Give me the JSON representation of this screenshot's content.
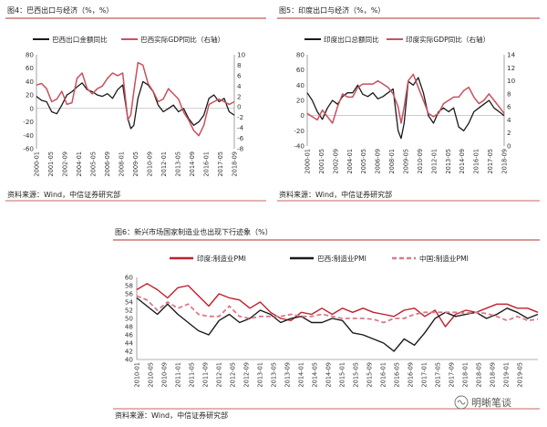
{
  "chart_data": [
    {
      "type": "line",
      "title": "图4：巴西出口与经济（%，%）",
      "source": "资料来源：Wind，中信证券研究部",
      "left_axis": {
        "min": -60,
        "max": 80,
        "step": 20,
        "ticks": [
          "80",
          "60",
          "40",
          "20",
          "0",
          "-20",
          "-40",
          "-60"
        ]
      },
      "right_axis": {
        "min": -8,
        "max": 10,
        "step": 2,
        "ticks": [
          "10",
          "8",
          "6",
          "4",
          "2",
          "0",
          "-2",
          "-4",
          "-6",
          "-8"
        ]
      },
      "x_range": [
        2000.0,
        2019.5
      ],
      "categories": [
        "2000-01",
        "2001-05",
        "2002-09",
        "2004-01",
        "2005-05",
        "2006-09",
        "2008-01",
        "2009-05",
        "2010-09",
        "2012-01",
        "2013-05",
        "2014-09",
        "2016-01",
        "2017-05",
        "2018-09"
      ],
      "series": [
        {
          "name": "巴西出口金额同比",
          "axis": "left",
          "color": "#1a1a1a",
          "x": [
            2000.0,
            2000.5,
            2001.0,
            2001.5,
            2002.0,
            2002.5,
            2003.0,
            2003.5,
            2004.0,
            2004.5,
            2005.0,
            2005.5,
            2006.0,
            2006.5,
            2007.0,
            2007.5,
            2008.0,
            2008.5,
            2009.0,
            2009.3,
            2009.6,
            2010.0,
            2010.5,
            2011.0,
            2011.5,
            2012.0,
            2012.5,
            2013.0,
            2013.5,
            2014.0,
            2014.5,
            2015.0,
            2015.5,
            2016.0,
            2016.5,
            2017.0,
            2017.5,
            2018.0,
            2018.5,
            2019.0,
            2019.5
          ],
          "values": [
            18,
            12,
            10,
            -5,
            -8,
            5,
            20,
            25,
            32,
            38,
            28,
            25,
            20,
            18,
            22,
            15,
            28,
            35,
            -15,
            -30,
            -25,
            15,
            40,
            35,
            25,
            5,
            -5,
            0,
            5,
            -5,
            0,
            -15,
            -25,
            -20,
            -10,
            15,
            20,
            10,
            15,
            -5,
            -10
          ]
        },
        {
          "name": "巴西实际GDP同比（右轴）",
          "axis": "right",
          "color": "#c9505e",
          "x": [
            2000.0,
            2000.5,
            2001.0,
            2001.5,
            2002.0,
            2002.5,
            2003.0,
            2003.5,
            2004.0,
            2004.5,
            2005.0,
            2005.5,
            2006.0,
            2006.5,
            2007.0,
            2007.5,
            2008.0,
            2008.5,
            2009.0,
            2009.3,
            2009.6,
            2010.0,
            2010.5,
            2011.0,
            2011.5,
            2012.0,
            2012.5,
            2013.0,
            2013.5,
            2014.0,
            2014.5,
            2015.0,
            2015.5,
            2016.0,
            2016.5,
            2017.0,
            2017.5,
            2018.0,
            2018.5,
            2019.0,
            2019.5
          ],
          "values": [
            4.2,
            4.5,
            3.5,
            1.0,
            1.5,
            3.0,
            0.5,
            0.8,
            5.5,
            6.5,
            3.5,
            2.5,
            3.5,
            4.0,
            5.5,
            6.5,
            6.0,
            6.5,
            -2.5,
            -1.5,
            3.0,
            8.5,
            8.0,
            4.5,
            3.0,
            1.0,
            1.5,
            3.5,
            2.5,
            1.5,
            -1.0,
            -2.5,
            -4.5,
            -5.5,
            -3.5,
            0.5,
            1.0,
            1.5,
            1.0,
            0.5,
            1.0
          ]
        }
      ]
    },
    {
      "type": "line",
      "title": "图5：印度出口与经济（%，%）",
      "source": "资料来源：Wind，中信证券研究部",
      "left_axis": {
        "min": -40,
        "max": 80,
        "step": 20,
        "ticks": [
          "80",
          "60",
          "40",
          "20",
          "0",
          "-20",
          "-40"
        ]
      },
      "right_axis": {
        "min": 0,
        "max": 14,
        "step": 2,
        "ticks": [
          "14",
          "12",
          "10",
          "8",
          "6",
          "4",
          "2",
          "0"
        ]
      },
      "x_range": [
        2000.0,
        2019.5
      ],
      "categories": [
        "2000-01",
        "2001-05",
        "2002-09",
        "2004-01",
        "2005-05",
        "2006-09",
        "2008-01",
        "2009-05",
        "2010-09",
        "2012-01",
        "2013-05",
        "2014-09",
        "2016-01",
        "2017-05",
        "2018-09"
      ],
      "series": [
        {
          "name": "印度出口总额同比",
          "axis": "left",
          "color": "#1a1a1a",
          "x": [
            2000.0,
            2000.5,
            2001.0,
            2001.5,
            2002.0,
            2002.5,
            2003.0,
            2003.5,
            2004.0,
            2004.5,
            2005.0,
            2005.5,
            2006.0,
            2006.5,
            2007.0,
            2007.5,
            2008.0,
            2008.5,
            2009.0,
            2009.3,
            2009.6,
            2010.0,
            2010.5,
            2011.0,
            2011.5,
            2012.0,
            2012.5,
            2013.0,
            2013.5,
            2014.0,
            2014.5,
            2015.0,
            2015.5,
            2016.0,
            2016.5,
            2017.0,
            2017.5,
            2018.0,
            2018.5,
            2019.0,
            2019.5
          ],
          "values": [
            30,
            20,
            5,
            -5,
            10,
            20,
            15,
            25,
            30,
            30,
            40,
            28,
            25,
            30,
            22,
            25,
            30,
            35,
            -20,
            -30,
            -10,
            45,
            40,
            50,
            30,
            0,
            -10,
            5,
            10,
            5,
            10,
            -15,
            -20,
            -10,
            5,
            10,
            15,
            20,
            10,
            5,
            0
          ]
        },
        {
          "name": "印度实际GDP同比（右轴）",
          "axis": "right",
          "color": "#c9505e",
          "x": [
            2000.0,
            2000.5,
            2001.0,
            2001.5,
            2002.0,
            2002.5,
            2003.0,
            2003.5,
            2004.0,
            2004.5,
            2005.0,
            2005.5,
            2006.0,
            2006.5,
            2007.0,
            2007.5,
            2008.0,
            2008.5,
            2009.0,
            2009.3,
            2009.6,
            2010.0,
            2010.5,
            2011.0,
            2011.5,
            2012.0,
            2012.5,
            2013.0,
            2013.5,
            2014.0,
            2014.5,
            2015.0,
            2015.5,
            2016.0,
            2016.5,
            2017.0,
            2017.5,
            2018.0,
            2018.5,
            2019.0,
            2019.5
          ],
          "values": [
            5.0,
            4.5,
            4.0,
            5.5,
            4.5,
            3.5,
            6.0,
            8.0,
            7.5,
            7.5,
            9.0,
            9.5,
            9.5,
            9.5,
            10.0,
            9.5,
            9.0,
            8.0,
            6.0,
            3.5,
            6.0,
            10.0,
            11.0,
            9.0,
            7.0,
            5.0,
            4.5,
            5.0,
            6.5,
            7.0,
            7.5,
            7.5,
            8.5,
            9.0,
            7.5,
            6.5,
            7.0,
            8.0,
            7.0,
            6.0,
            5.0
          ]
        }
      ]
    },
    {
      "type": "line",
      "title": "图6：新兴市场国家制造业也出现下行迹象（%）",
      "source": "资料来源：Wind，中信证券研究部",
      "watermark": "明晰笔谈",
      "y_axis": {
        "min": 40,
        "max": 60,
        "step": 2,
        "ticks": [
          "60",
          "58",
          "56",
          "54",
          "52",
          "50",
          "48",
          "46",
          "44",
          "42",
          "40"
        ]
      },
      "x_range": [
        2010.0,
        2019.75
      ],
      "categories": [
        "2010-01",
        "2010-05",
        "2010-09",
        "2011-01",
        "2011-05",
        "2011-09",
        "2012-01",
        "2012-05",
        "2012-09",
        "2013-01",
        "2013-05",
        "2013-09",
        "2014-01",
        "2014-05",
        "2014-09",
        "2015-01",
        "2015-05",
        "2015-09",
        "2016-01",
        "2016-05",
        "2016-09",
        "2017-01",
        "2017-05",
        "2017-09",
        "2018-01",
        "2018-05",
        "2018-09",
        "2019-01",
        "2019-05"
      ],
      "series": [
        {
          "name": "印度:制造业PMI",
          "color": "#c0202c",
          "dash": false,
          "x": [
            2010.0,
            2010.25,
            2010.5,
            2010.75,
            2011.0,
            2011.25,
            2011.5,
            2011.75,
            2012.0,
            2012.25,
            2012.5,
            2012.75,
            2013.0,
            2013.25,
            2013.5,
            2013.75,
            2014.0,
            2014.25,
            2014.5,
            2014.75,
            2015.0,
            2015.25,
            2015.5,
            2015.75,
            2016.0,
            2016.25,
            2016.5,
            2016.75,
            2017.0,
            2017.25,
            2017.5,
            2017.75,
            2018.0,
            2018.25,
            2018.5,
            2018.75,
            2019.0,
            2019.25,
            2019.5,
            2019.75
          ],
          "values": [
            57,
            58.5,
            57,
            55,
            57.5,
            58,
            55.5,
            53,
            56,
            55,
            54.5,
            52.5,
            54,
            51.5,
            50,
            49.5,
            51.5,
            51,
            52.5,
            51,
            52.5,
            51.5,
            52.5,
            51.5,
            51,
            50.5,
            52,
            52.5,
            50.5,
            52,
            48,
            51,
            52,
            51.5,
            52.5,
            53.5,
            53.5,
            52.5,
            52.5,
            51.5
          ]
        },
        {
          "name": "巴西:制造业PMI",
          "color": "#1a1a1a",
          "dash": false,
          "x": [
            2010.0,
            2010.25,
            2010.5,
            2010.75,
            2011.0,
            2011.25,
            2011.5,
            2011.75,
            2012.0,
            2012.25,
            2012.5,
            2012.75,
            2013.0,
            2013.25,
            2013.5,
            2013.75,
            2014.0,
            2014.25,
            2014.5,
            2014.75,
            2015.0,
            2015.25,
            2015.5,
            2015.75,
            2016.0,
            2016.25,
            2016.5,
            2016.75,
            2017.0,
            2017.25,
            2017.5,
            2017.75,
            2018.0,
            2018.25,
            2018.5,
            2018.75,
            2019.0,
            2019.25,
            2019.5,
            2019.75
          ],
          "values": [
            55,
            53,
            51,
            53.5,
            51,
            49,
            47,
            46,
            49.5,
            51,
            49,
            50,
            52,
            51,
            49,
            50,
            50.5,
            49,
            49,
            50,
            49.5,
            46.5,
            46,
            45,
            44,
            42,
            45,
            43.5,
            46.5,
            50,
            51.5,
            50.5,
            51,
            51.5,
            50,
            51,
            52.5,
            51.5,
            50,
            51
          ]
        },
        {
          "name": "中国:制造业PMI",
          "color": "#d97a8a",
          "dash": true,
          "x": [
            2010.0,
            2010.25,
            2010.5,
            2010.75,
            2011.0,
            2011.25,
            2011.5,
            2011.75,
            2012.0,
            2012.25,
            2012.5,
            2012.75,
            2013.0,
            2013.25,
            2013.5,
            2013.75,
            2014.0,
            2014.25,
            2014.5,
            2014.75,
            2015.0,
            2015.25,
            2015.5,
            2015.75,
            2016.0,
            2016.25,
            2016.5,
            2016.75,
            2017.0,
            2017.25,
            2017.5,
            2017.75,
            2018.0,
            2018.25,
            2018.5,
            2018.75,
            2019.0,
            2019.25,
            2019.5,
            2019.75
          ],
          "values": [
            55.5,
            54.5,
            52,
            54,
            52.5,
            53.5,
            51,
            50.5,
            50.5,
            53,
            50.5,
            50,
            50.5,
            50.5,
            50.5,
            51,
            50.5,
            50.5,
            51,
            50.5,
            50,
            50,
            50,
            49.8,
            49,
            50,
            50,
            51,
            51.5,
            51.5,
            51.5,
            51.5,
            51.3,
            51.5,
            51.2,
            50.5,
            49.5,
            50.5,
            49.5,
            49.8
          ]
        }
      ]
    }
  ]
}
